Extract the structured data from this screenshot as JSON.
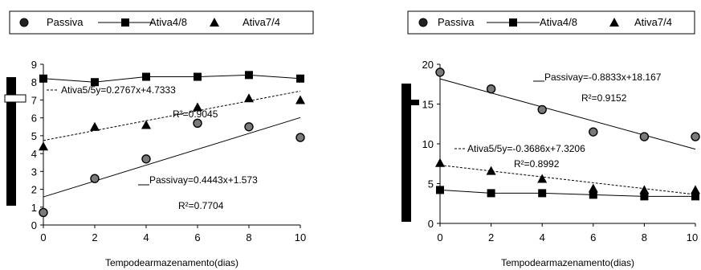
{
  "chart_data": [
    {
      "type": "scatter",
      "legend": {
        "placement": "top",
        "entries": [
          "Passiva",
          "Ativa4/8",
          "Ativa7/4"
        ]
      },
      "xlabel": "Tempodearmazenamento(dias)",
      "ylabel": "",
      "xlim": [
        0,
        10
      ],
      "ylim": [
        0,
        9
      ],
      "x_ticks": [
        "0",
        "2",
        "4",
        "6",
        "8",
        "10"
      ],
      "y_ticks": [
        "0",
        "1",
        "2",
        "3",
        "4",
        "5",
        "6",
        "7",
        "8",
        "9"
      ],
      "grid": false,
      "x": [
        0,
        2,
        4,
        6,
        8,
        10
      ],
      "series": [
        {
          "name": "Passiva",
          "marker": "circle",
          "values": [
            0.7,
            2.6,
            3.7,
            5.7,
            5.5,
            4.9
          ]
        },
        {
          "name": "Ativa4/8",
          "marker": "square",
          "values": [
            8.2,
            8.0,
            8.3,
            8.3,
            8.4,
            8.2
          ]
        },
        {
          "name": "Ativa7/4",
          "marker": "triangle",
          "values": [
            4.4,
            5.5,
            5.6,
            6.6,
            7.1,
            7.0
          ]
        }
      ],
      "trendlines": [
        {
          "series": "Ativa7/4",
          "style": "dashed",
          "slope": 0.2767,
          "intercept": 4.7333,
          "equation": "Ativa5/5y=0.2767x+4.7333",
          "r2_label": "R²=0.9045"
        },
        {
          "series": "Passiva",
          "style": "solid",
          "slope": 0.4443,
          "intercept": 1.573,
          "equation": "Passivay=0.4443x+1.573",
          "r2_label": "R²=0.7704"
        }
      ]
    },
    {
      "type": "scatter",
      "legend": {
        "placement": "top",
        "entries": [
          "Passiva",
          "Ativa4/8",
          "Ativa7/4"
        ]
      },
      "xlabel": "Tempodearmazenamento(dias)",
      "ylabel": "",
      "xlim": [
        0,
        10
      ],
      "ylim": [
        0,
        20
      ],
      "x_ticks": [
        "0",
        "2",
        "4",
        "6",
        "8",
        "10"
      ],
      "y_ticks": [
        "0",
        "5",
        "10",
        "15",
        "20"
      ],
      "grid": false,
      "x": [
        0,
        2,
        4,
        6,
        8,
        10
      ],
      "series": [
        {
          "name": "Passiva",
          "marker": "circle",
          "values": [
            19.0,
            16.9,
            14.3,
            11.5,
            10.9,
            10.9
          ]
        },
        {
          "name": "Ativa4/8",
          "marker": "square",
          "values": [
            4.2,
            3.8,
            3.8,
            3.6,
            3.4,
            3.4
          ]
        },
        {
          "name": "Ativa7/4",
          "marker": "triangle",
          "values": [
            7.6,
            6.6,
            5.6,
            4.4,
            4.2,
            4.2
          ]
        }
      ],
      "trendlines": [
        {
          "series": "Passiva",
          "style": "solid",
          "slope": -0.8833,
          "intercept": 18.167,
          "equation": "Passivay=-0.8833x+18.167",
          "r2_label": "R²=0.9152"
        },
        {
          "series": "Ativa7/4",
          "style": "dashed",
          "slope": -0.3686,
          "intercept": 7.3206,
          "equation": "Ativa5/5y=-0.3686x+7.3206",
          "r2_label": "R²=0.8992"
        }
      ]
    }
  ]
}
